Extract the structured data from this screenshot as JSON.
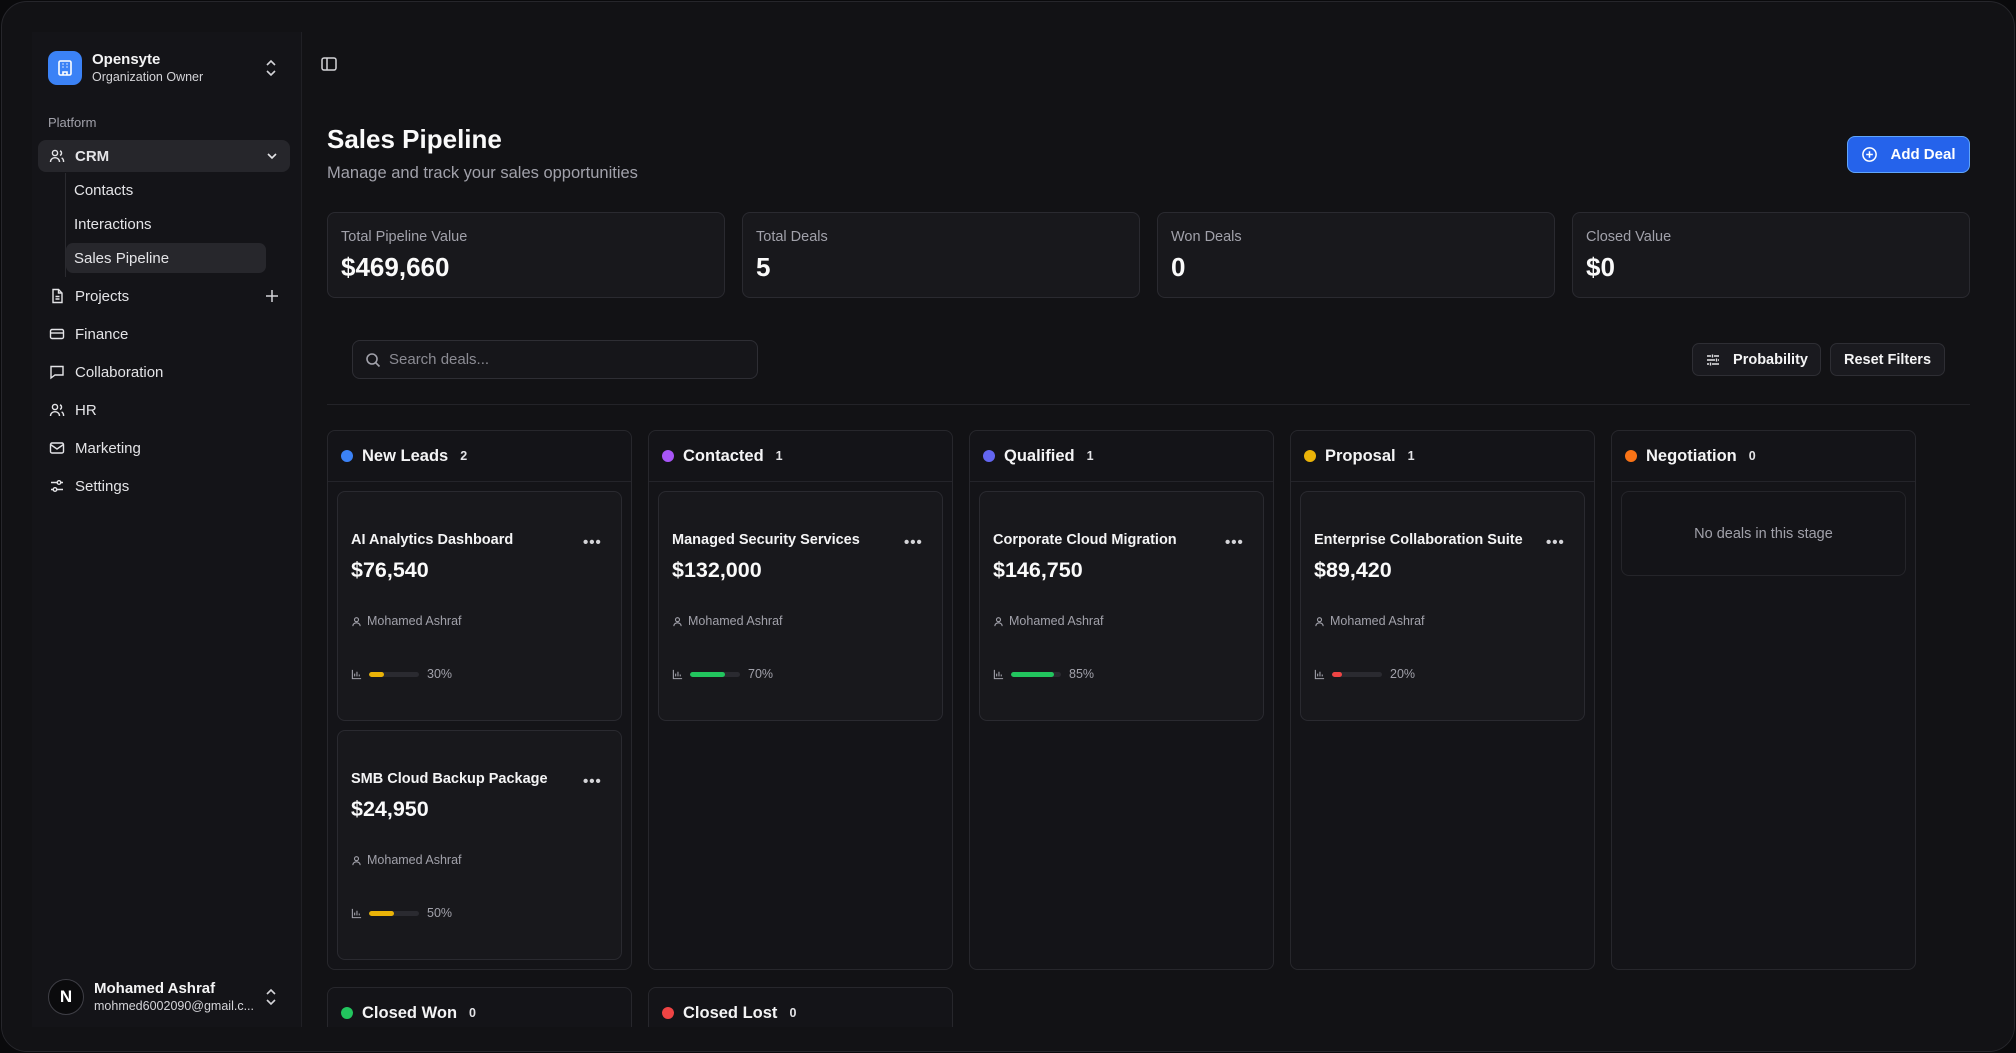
{
  "org": {
    "name": "Opensyte",
    "role": "Organization Owner"
  },
  "sidebar": {
    "section_label": "Platform",
    "crm": "CRM",
    "crm_sub": [
      "Contacts",
      "Interactions",
      "Sales Pipeline"
    ],
    "items": [
      {
        "label": "Projects",
        "icon": "file-icon"
      },
      {
        "label": "Finance",
        "icon": "card-icon"
      },
      {
        "label": "Collaboration",
        "icon": "chat-icon"
      },
      {
        "label": "HR",
        "icon": "users-icon"
      },
      {
        "label": "Marketing",
        "icon": "mail-icon"
      },
      {
        "label": "Settings",
        "icon": "sliders-icon"
      }
    ]
  },
  "user": {
    "initial": "N",
    "name": "Mohamed Ashraf",
    "email": "mohmed6002090@gmail.c..."
  },
  "page": {
    "title": "Sales Pipeline",
    "subtitle": "Manage and track your sales opportunities",
    "add_label": "Add Deal"
  },
  "stats": [
    {
      "label": "Total Pipeline Value",
      "value": "$469,660"
    },
    {
      "label": "Total Deals",
      "value": "5"
    },
    {
      "label": "Won Deals",
      "value": "0"
    },
    {
      "label": "Closed Value",
      "value": "$0"
    }
  ],
  "search": {
    "placeholder": "Search deals..."
  },
  "filters": {
    "probability": "Probability",
    "reset": "Reset Filters"
  },
  "colors": {
    "accent": "#2563eb",
    "yellow": "#eab308",
    "green": "#22c55e",
    "red": "#ef4444"
  },
  "columns": [
    {
      "name": "New Leads",
      "count": "2",
      "color": "#3b82f6"
    },
    {
      "name": "Contacted",
      "count": "1",
      "color": "#a855f7"
    },
    {
      "name": "Qualified",
      "count": "1",
      "color": "#6366f1"
    },
    {
      "name": "Proposal",
      "count": "1",
      "color": "#eab308"
    },
    {
      "name": "Negotiation",
      "count": "0",
      "color": "#f97316",
      "empty_text": "No deals in this stage"
    },
    {
      "name": "Closed Won",
      "count": "0",
      "color": "#22c55e"
    },
    {
      "name": "Closed Lost",
      "count": "0",
      "color": "#ef4444"
    }
  ],
  "deals": [
    {
      "title": "AI Analytics Dashboard",
      "amount": "$76,540",
      "owner": "Mohamed Ashraf",
      "probability": "30%",
      "probability_value": 0.3,
      "bar_color": "#eab308"
    },
    {
      "title": "SMB Cloud Backup Package",
      "amount": "$24,950",
      "owner": "Mohamed Ashraf",
      "probability": "50%",
      "probability_value": 0.5,
      "bar_color": "#eab308"
    },
    {
      "title": "Managed Security Services",
      "amount": "$132,000",
      "owner": "Mohamed Ashraf",
      "probability": "70%",
      "probability_value": 0.7,
      "bar_color": "#22c55e"
    },
    {
      "title": "Corporate Cloud Migration",
      "amount": "$146,750",
      "owner": "Mohamed Ashraf",
      "probability": "85%",
      "probability_value": 0.85,
      "bar_color": "#22c55e"
    },
    {
      "title": "Enterprise Collaboration Suite",
      "amount": "$89,420",
      "owner": "Mohamed Ashraf",
      "probability": "20%",
      "probability_value": 0.2,
      "bar_color": "#ef4444"
    }
  ]
}
